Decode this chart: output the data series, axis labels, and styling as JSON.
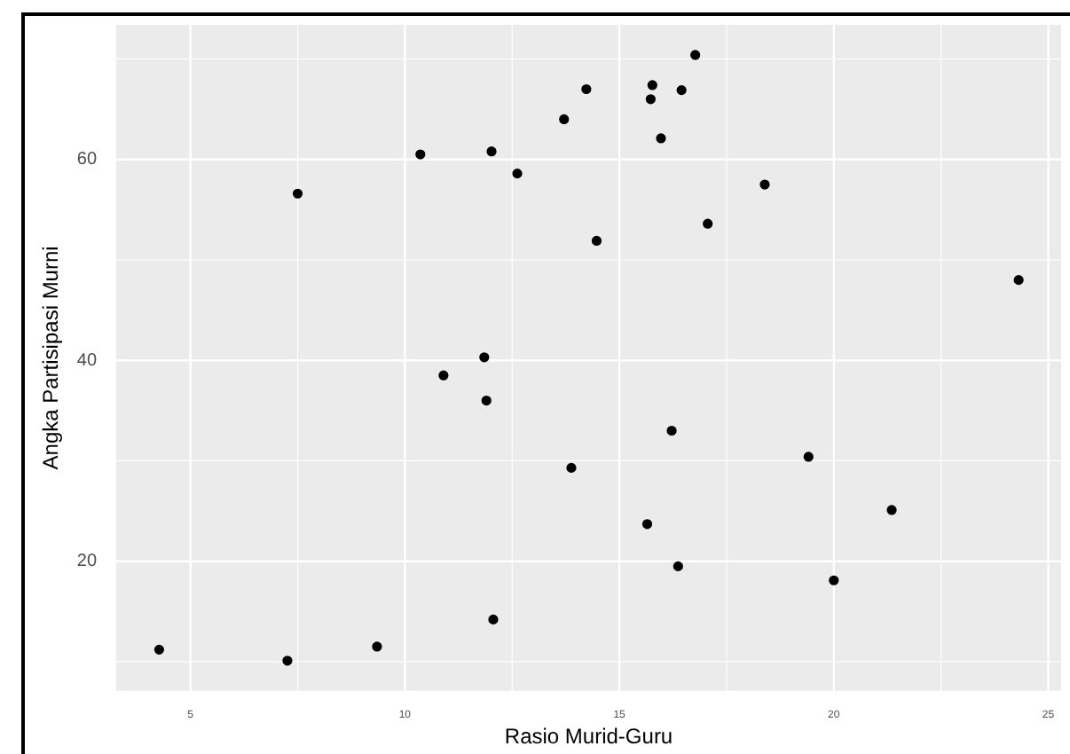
{
  "chart_data": {
    "type": "scatter",
    "xlabel": "Rasio Murid-Guru",
    "ylabel": "Angka Partisipasi Murni",
    "x": [
      4.27,
      7.26,
      9.35,
      12.06,
      7.5,
      10.36,
      12.02,
      12.62,
      13.71,
      14.23,
      15.73,
      15.77,
      15.97,
      16.45,
      16.77,
      14.47,
      17.06,
      18.39,
      24.31,
      10.9,
      11.85,
      11.9,
      13.88,
      16.22,
      19.41,
      15.65,
      21.35,
      16.37,
      20.0
    ],
    "values": [
      11.2,
      10.1,
      11.5,
      14.2,
      56.6,
      60.5,
      60.8,
      58.6,
      64.0,
      67.0,
      66.0,
      67.4,
      62.1,
      66.9,
      70.4,
      51.9,
      53.6,
      57.5,
      48.0,
      38.5,
      40.3,
      36.0,
      29.3,
      33.0,
      30.4,
      23.7,
      25.1,
      19.5,
      18.1
    ],
    "color": "#000000",
    "marker": "circle",
    "xlim": [
      3.27,
      25.3
    ],
    "ylim": [
      7.1,
      73.4
    ],
    "xticks": [
      5,
      10,
      15,
      20,
      25
    ],
    "yticks": [
      20,
      40,
      60
    ],
    "grid": true,
    "legend": false
  }
}
